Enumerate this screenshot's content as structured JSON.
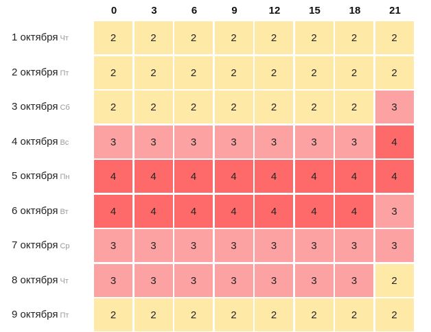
{
  "hours": [
    "0",
    "3",
    "6",
    "9",
    "12",
    "15",
    "18",
    "21"
  ],
  "days": [
    {
      "label": "1 октября",
      "weekday": "Чт",
      "values": [
        "2",
        "2",
        "2",
        "2",
        "2",
        "2",
        "2",
        "2"
      ]
    },
    {
      "label": "2 октября",
      "weekday": "Пт",
      "values": [
        "2",
        "2",
        "2",
        "2",
        "2",
        "2",
        "2",
        "2"
      ]
    },
    {
      "label": "3 октября",
      "weekday": "Сб",
      "values": [
        "2",
        "2",
        "2",
        "2",
        "2",
        "2",
        "2",
        "3"
      ]
    },
    {
      "label": "4 октября",
      "weekday": "Вс",
      "values": [
        "3",
        "3",
        "3",
        "3",
        "3",
        "3",
        "3",
        "4"
      ]
    },
    {
      "label": "5 октября",
      "weekday": "Пн",
      "values": [
        "4",
        "4",
        "4",
        "4",
        "4",
        "4",
        "4",
        "4"
      ]
    },
    {
      "label": "6 октября",
      "weekday": "Вт",
      "values": [
        "4",
        "4",
        "4",
        "4",
        "4",
        "4",
        "4",
        "3"
      ]
    },
    {
      "label": "7 октября",
      "weekday": "Ср",
      "values": [
        "3",
        "3",
        "3",
        "3",
        "3",
        "3",
        "3",
        "3"
      ]
    },
    {
      "label": "8 октября",
      "weekday": "Чт",
      "values": [
        "3",
        "3",
        "3",
        "3",
        "3",
        "3",
        "3",
        "2"
      ]
    },
    {
      "label": "9 октября",
      "weekday": "Пт",
      "values": [
        "2",
        "2",
        "2",
        "2",
        "2",
        "2",
        "2",
        "2"
      ]
    }
  ],
  "level_colors": {
    "2": "#ffe9a6",
    "3": "#fda2a2",
    "4": "#fe6a6a"
  }
}
